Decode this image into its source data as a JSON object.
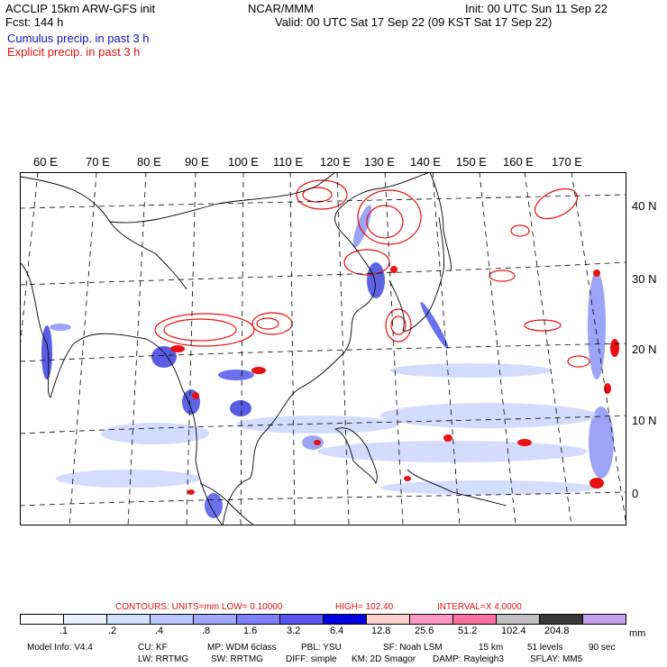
{
  "header": {
    "model": "ACCLIP 15km ARW-GFS init",
    "org": "NCAR/MMM",
    "init": "Init: 00 UTC Sun 11 Sep 22",
    "fcst": "Fcst:   144 h",
    "valid": "Valid: 00 UTC Sat 17 Sep 22 (09 KST Sat 17 Sep 22)",
    "field1": "Cumulus precip. in past 3 h",
    "field2": "Explicit precip. in past 3 h"
  },
  "map": {
    "lon_labels": [
      "60 E",
      "70 E",
      "80 E",
      "90 E",
      "100 E",
      "110 E",
      "120 E",
      "130 E",
      "140 E",
      "150 E",
      "160 E",
      "170 E"
    ],
    "lat_labels": [
      "40 N",
      "30 N",
      "20 N",
      "10 N",
      "0"
    ],
    "colors": {
      "cumulus": "#3030e0",
      "explicit": "#e81010",
      "coast": "#000000",
      "grid": "#000000"
    }
  },
  "contours": {
    "label": "CONTOURS:  UNITS=mm   LOW=  0.10000",
    "high": "HIGH=   102.40",
    "interval": "INTERVAL=X   4.0000"
  },
  "colorbar": {
    "colors": [
      "#ffffff",
      "#e8f0ff",
      "#d0e0ff",
      "#b8c8ff",
      "#a0a8ff",
      "#8080ff",
      "#5858f0",
      "#0000e0",
      "#ffd0d0",
      "#ff98c0",
      "#ff70a0",
      "#c0c0c0",
      "#383838",
      "#c8a0f0"
    ],
    "ticks": [
      ".1",
      ".2",
      ".4",
      ".8",
      "1.6",
      "3.2",
      "6.4",
      "12.8",
      "25.6",
      "51.2",
      "102.4",
      "204.8"
    ],
    "unit": "mm"
  },
  "footer": {
    "line1": [
      {
        "text": "Model Info: V4.4"
      },
      {
        "text": "CU: KF"
      },
      {
        "text": "MP: WDM 6class"
      },
      {
        "text": "PBL: YSU"
      },
      {
        "text": "SF: Noah LSM"
      },
      {
        "text": "15 km"
      },
      {
        "text": "51 levels"
      },
      {
        "text": "90 sec"
      }
    ],
    "line2": [
      {
        "text": "LW: RRTMG"
      },
      {
        "text": "SW: RRTMG"
      },
      {
        "text": "DIFF: simple"
      },
      {
        "text": "KM: 2D Smagor"
      },
      {
        "text": "DAMP: Rayleigh3"
      },
      {
        "text": "SFLAY: MM5"
      }
    ]
  }
}
